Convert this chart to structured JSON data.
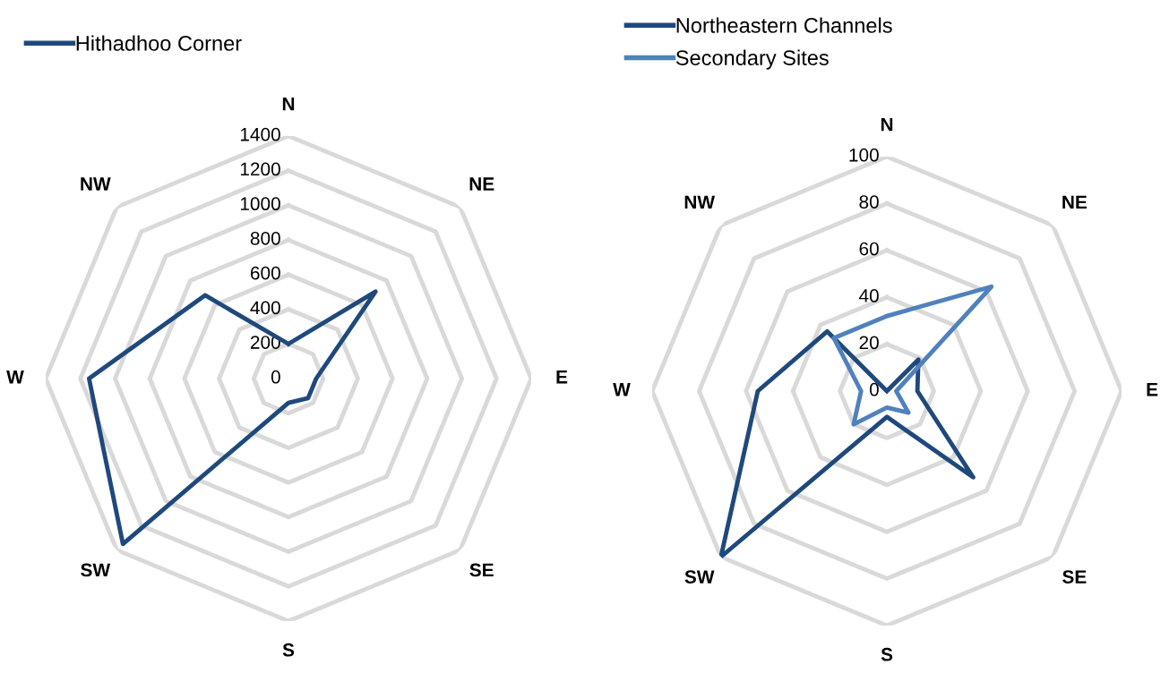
{
  "chart_data": [
    {
      "type": "radar",
      "categories": [
        "N",
        "NE",
        "E",
        "SE",
        "S",
        "SW",
        "W",
        "NW"
      ],
      "ylim": [
        0,
        1400
      ],
      "yticks": [
        0,
        200,
        400,
        600,
        800,
        1000,
        1200,
        1400
      ],
      "grid": true,
      "legend": "top left",
      "marker": "none",
      "series": [
        {
          "name": "Hithadhoo Corner",
          "color": "#1f497d",
          "values": [
            200,
            710,
            160,
            160,
            140,
            1350,
            1150,
            680
          ]
        }
      ]
    },
    {
      "type": "radar",
      "categories": [
        "N",
        "NE",
        "E",
        "SE",
        "S",
        "SW",
        "W",
        "NW"
      ],
      "ylim": [
        0,
        100
      ],
      "yticks": [
        0,
        20,
        40,
        60,
        80,
        100
      ],
      "grid": true,
      "legend": "top left",
      "marker": "none",
      "series": [
        {
          "name": "Northeastern Channels",
          "color": "#1f497d",
          "values": [
            0,
            19,
            13,
            52,
            11,
            100,
            55,
            36
          ]
        },
        {
          "name": "Secondary Sites",
          "color": "#4f81bd",
          "values": [
            32,
            63,
            4,
            13,
            7,
            20,
            11,
            32
          ]
        }
      ]
    }
  ]
}
